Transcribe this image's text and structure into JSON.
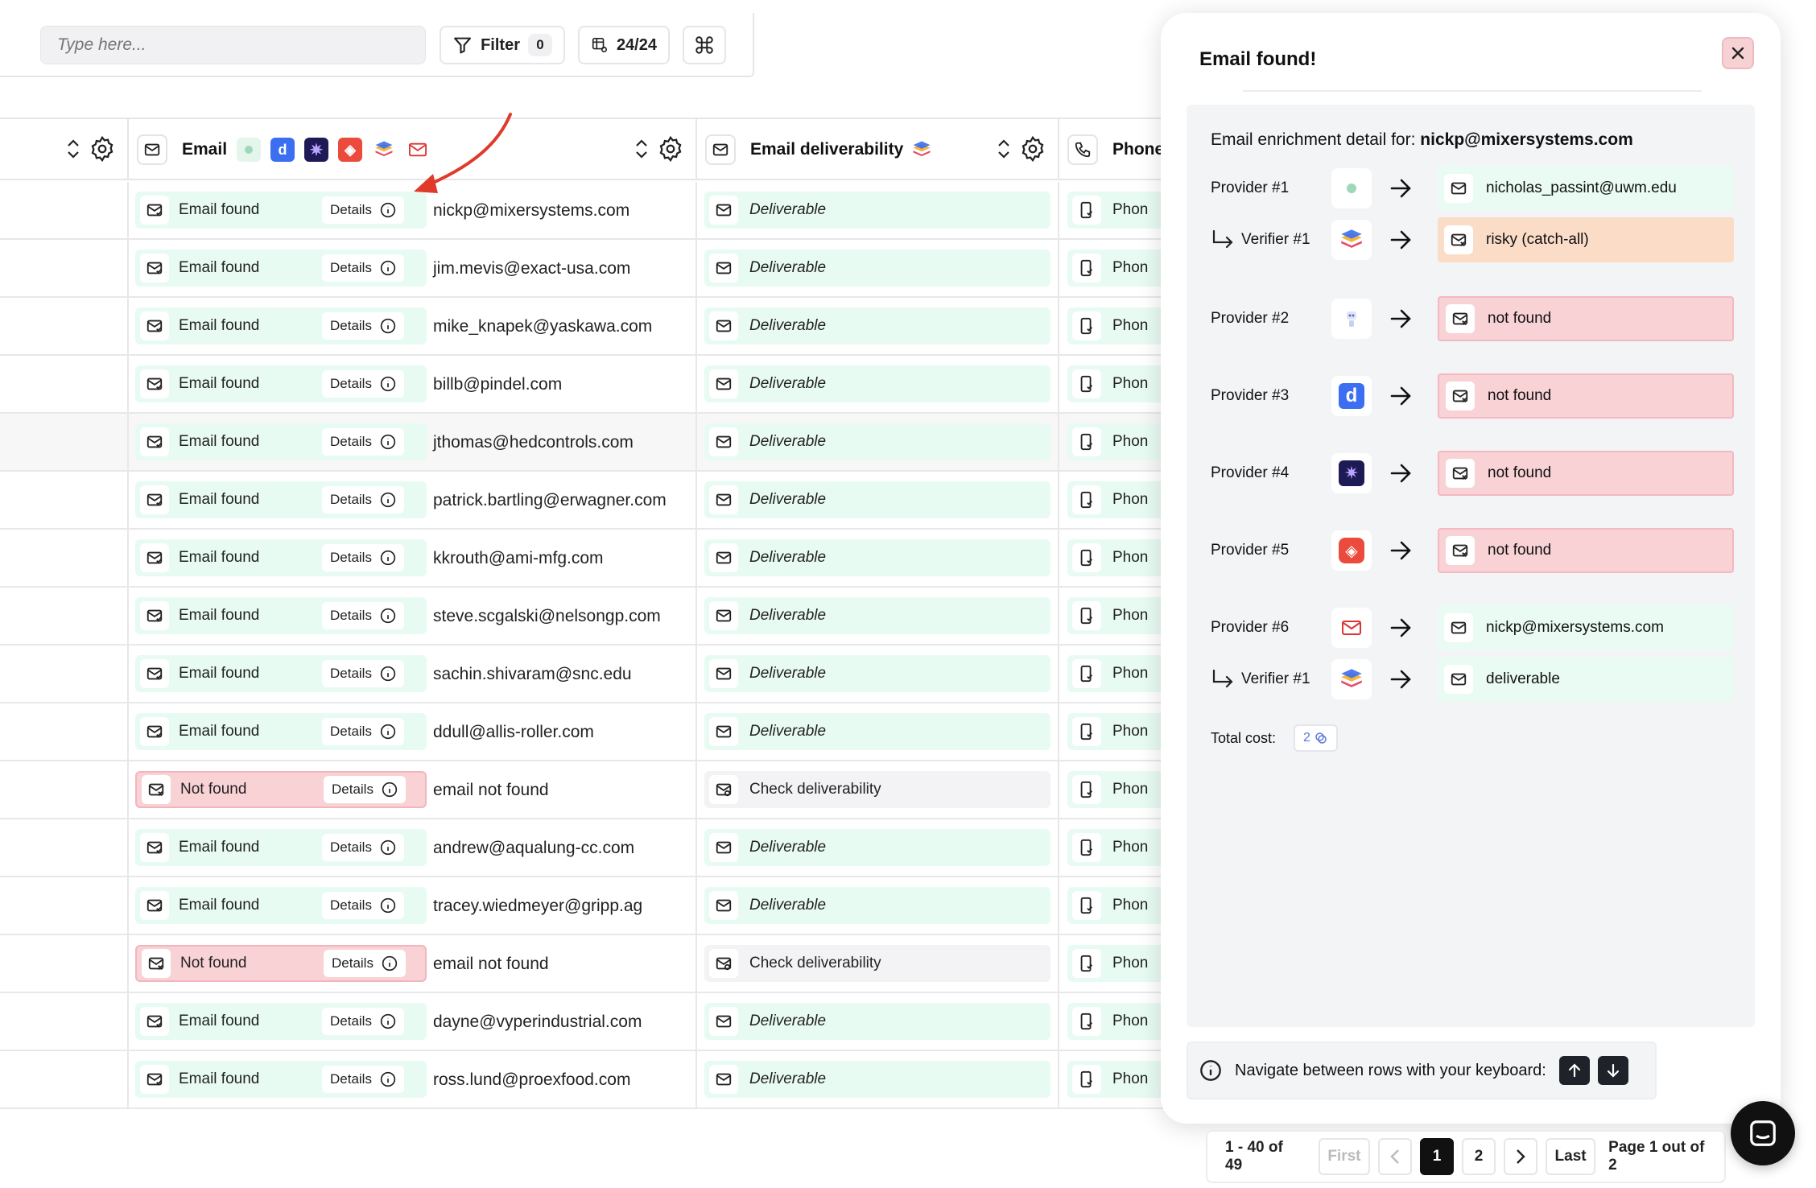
{
  "toolbar": {
    "search_placeholder": "Type here...",
    "filter_label": "Filter",
    "filter_count": "0",
    "columns_label": "24/24"
  },
  "table": {
    "columns": {
      "email": "Email",
      "deliverability": "Email deliverability",
      "phone": "Phone"
    },
    "details_label": "Details",
    "rows": [
      {
        "status": "Email found",
        "found": true,
        "email": "nickp@mixersystems.com",
        "deliverability": "Deliverable",
        "phone": "Phon"
      },
      {
        "status": "Email found",
        "found": true,
        "email": "jim.mevis@exact-usa.com",
        "deliverability": "Deliverable",
        "phone": "Phon"
      },
      {
        "status": "Email found",
        "found": true,
        "email": "mike_knapek@yaskawa.com",
        "deliverability": "Deliverable",
        "phone": "Phon"
      },
      {
        "status": "Email found",
        "found": true,
        "email": "billb@pindel.com",
        "deliverability": "Deliverable",
        "phone": "Phon"
      },
      {
        "status": "Email found",
        "found": true,
        "email": "jthomas@hedcontrols.com",
        "deliverability": "Deliverable",
        "phone": "Phon"
      },
      {
        "status": "Email found",
        "found": true,
        "email": "patrick.bartling@erwagner.com",
        "deliverability": "Deliverable",
        "phone": "Phon"
      },
      {
        "status": "Email found",
        "found": true,
        "email": "kkrouth@ami-mfg.com",
        "deliverability": "Deliverable",
        "phone": "Phon"
      },
      {
        "status": "Email found",
        "found": true,
        "email": "steve.scgalski@nelsongp.com",
        "deliverability": "Deliverable",
        "phone": "Phon"
      },
      {
        "status": "Email found",
        "found": true,
        "email": "sachin.shivaram@snc.edu",
        "deliverability": "Deliverable",
        "phone": "Phon"
      },
      {
        "status": "Email found",
        "found": true,
        "email": "ddull@allis-roller.com",
        "deliverability": "Deliverable",
        "phone": "Phon"
      },
      {
        "status": "Not found",
        "found": false,
        "email": "email not found",
        "deliverability": "Check deliverability",
        "phone": "Phon"
      },
      {
        "status": "Email found",
        "found": true,
        "email": "andrew@aqualung-cc.com",
        "deliverability": "Deliverable",
        "phone": "Phon"
      },
      {
        "status": "Email found",
        "found": true,
        "email": "tracey.wiedmeyer@gripp.ag",
        "deliverability": "Deliverable",
        "phone": "Phon"
      },
      {
        "status": "Not found",
        "found": false,
        "email": "email not found",
        "deliverability": "Check deliverability",
        "phone": "Phon"
      },
      {
        "status": "Email found",
        "found": true,
        "email": "dayne@vyperindustrial.com",
        "deliverability": "Deliverable",
        "phone": "Phon"
      },
      {
        "status": "Email found",
        "found": true,
        "email": "ross.lund@proexfood.com",
        "deliverability": "Deliverable",
        "phone": "Phon"
      }
    ]
  },
  "panel": {
    "title": "Email found!",
    "detail_prefix": "Email enrichment detail for:",
    "detail_email": "nickp@mixersystems.com",
    "steps": [
      {
        "label": "Provider #1",
        "verifier": false,
        "logo": "dot-provider-icon",
        "result": "nicholas_passint@uwm.edu",
        "state": "ok"
      },
      {
        "label": "Verifier #1",
        "verifier": true,
        "logo": "stack-verifier-icon",
        "result": "risky (catch-all)",
        "state": "risk"
      },
      {
        "label": "Provider #2",
        "verifier": false,
        "logo": "robot-provider-icon",
        "result": "not found",
        "state": "nf"
      },
      {
        "label": "Provider #3",
        "verifier": false,
        "logo": "d-provider-icon",
        "result": "not found",
        "state": "nf"
      },
      {
        "label": "Provider #4",
        "verifier": false,
        "logo": "spark-provider-icon",
        "result": "not found",
        "state": "nf"
      },
      {
        "label": "Provider #5",
        "verifier": false,
        "logo": "cube-provider-icon",
        "result": "not found",
        "state": "nf"
      },
      {
        "label": "Provider #6",
        "verifier": false,
        "logo": "mail-provider-icon",
        "result": "nickp@mixersystems.com",
        "state": "ok"
      },
      {
        "label": "Verifier #1",
        "verifier": true,
        "logo": "stack-verifier-icon",
        "result": "deliverable",
        "state": "ok"
      }
    ],
    "total_cost_label": "Total cost:",
    "total_cost_value": "2",
    "nav_hint": "Navigate between rows with your keyboard:"
  },
  "pagination": {
    "range": "1 - 40 of 49",
    "first": "First",
    "pages": [
      "1",
      "2"
    ],
    "current_page": "1",
    "last": "Last",
    "info": "Page 1 out of 2"
  },
  "colors": {
    "found_bg": "#e8fbf2",
    "not_found_bg": "#f9d2d6",
    "risky_bg": "#fbdcc7",
    "arrow_annotation": "#e03a2a"
  }
}
